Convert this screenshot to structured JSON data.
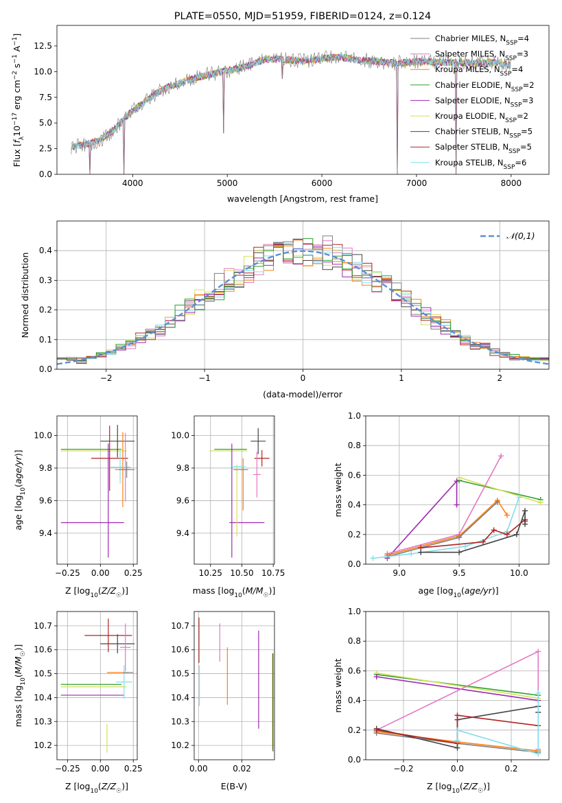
{
  "figure": {
    "title": "PLATE=0550, MJD=51959, FIBERID=0124, z=0.124"
  },
  "colors": {
    "Chabrier MILES": "#7f7f7f",
    "Salpeter MILES": "#e377c2",
    "Kroupa MILES": "#ff7f0e",
    "Chabrier ELODIE": "#2ca02c",
    "Salpeter ELODIE": "#9c27b0",
    "Kroupa ELODIE": "#d4e157",
    "Chabrier STELIB": "#444444",
    "Salpeter STELIB": "#b22222",
    "Kroupa STELIB": "#80deea",
    "normal": "#5b8fd6"
  },
  "chart_data": [
    {
      "id": "spectrum",
      "type": "line",
      "title": "PLATE=0550, MJD=51959, FIBERID=0124, z=0.124",
      "xlabel": "wavelength [Angstrom, rest frame]",
      "ylabel": "Flux [f_λ 10^-17 erg cm^-2 s^-1 A^-1]",
      "xlim": [
        3200,
        8400
      ],
      "ylim": [
        0,
        14.5
      ],
      "xticks": [
        4000,
        5000,
        6000,
        7000,
        8000
      ],
      "yticks": [
        0.0,
        2.5,
        5.0,
        7.5,
        10.0,
        12.5
      ],
      "grid": false,
      "legend_position": "top-right",
      "continuum": {
        "x": [
          3350,
          3500,
          3650,
          3800,
          3950,
          4100,
          4250,
          4400,
          4600,
          4800,
          5000,
          5200,
          5400,
          5600,
          5800,
          6000,
          6200,
          6400,
          6600,
          6800,
          7000,
          7200,
          7400,
          7600,
          7800,
          8000
        ],
        "y": [
          2.7,
          2.9,
          3.3,
          4.3,
          5.8,
          6.9,
          7.9,
          8.6,
          9.2,
          9.7,
          10.1,
          10.5,
          11.2,
          11.2,
          11.0,
          11.3,
          11.4,
          11.1,
          11.0,
          10.8,
          11.0,
          10.9,
          10.9,
          10.8,
          10.9,
          10.6
        ]
      },
      "drops": [
        {
          "x": 3550,
          "to": 0.0
        },
        {
          "x": 3910,
          "to": 0.0
        },
        {
          "x": 4960,
          "to": 4.0
        },
        {
          "x": 6800,
          "to": 0.0
        },
        {
          "x": 7420,
          "to": 0.0
        },
        {
          "x": 5580,
          "to": 9.3
        }
      ],
      "series": [
        {
          "name": "Chabrier MILES, N_SSP=4",
          "key": "Chabrier MILES"
        },
        {
          "name": "Salpeter MILES, N_SSP=3",
          "key": "Salpeter MILES"
        },
        {
          "name": "Kroupa MILES, N_SSP=4",
          "key": "Kroupa MILES"
        },
        {
          "name": "Chabrier ELODIE, N_SSP=2",
          "key": "Chabrier ELODIE"
        },
        {
          "name": "Salpeter ELODIE, N_SSP=3",
          "key": "Salpeter ELODIE"
        },
        {
          "name": "Kroupa ELODIE, N_SSP=2",
          "key": "Kroupa ELODIE"
        },
        {
          "name": "Chabrier STELIB, N_SSP=5",
          "key": "Chabrier STELIB"
        },
        {
          "name": "Salpeter STELIB, N_SSP=5",
          "key": "Salpeter STELIB"
        },
        {
          "name": "Kroupa STELIB, N_SSP=6",
          "key": "Kroupa STELIB"
        }
      ]
    },
    {
      "id": "residuals",
      "type": "line",
      "xlabel": "(data-model)/error",
      "ylabel": "Normed distribution",
      "xlim": [
        -2.5,
        2.5
      ],
      "ylim": [
        0,
        0.5
      ],
      "xticks": [
        -2,
        -1,
        0,
        1,
        2
      ],
      "yticks": [
        0.0,
        0.1,
        0.2,
        0.3,
        0.4
      ],
      "grid": true,
      "legend_position": "top-right",
      "legend": [
        "𝒩(0,1)"
      ],
      "bin_width": 0.1
    },
    {
      "id": "age-vs-Z",
      "type": "scatter",
      "xlabel": "Z [log10(Z/Z☉)]",
      "ylabel": "age [log10(age/yr)]",
      "xlim": [
        -0.33,
        0.28
      ],
      "ylim": [
        9.21,
        10.12
      ],
      "xticks": [
        -0.25,
        0.0,
        0.25
      ],
      "yticks": [
        9.4,
        9.6,
        9.8,
        10.0
      ],
      "grid": true,
      "points": [
        {
          "key": "Chabrier ELODIE",
          "x": -0.07,
          "y": 9.915,
          "xerr": 0.23,
          "yerr": 0.0
        },
        {
          "key": "Kroupa ELODIE",
          "x": -0.05,
          "y": 9.905,
          "xerr": 0.25,
          "yerr": 0.0
        },
        {
          "key": "Salpeter ELODIE",
          "x": -0.06,
          "y": 9.465,
          "xerr": 0.24,
          "yerr": 0.0
        },
        {
          "key": "Chabrier STELIB",
          "x": 0.13,
          "y": 9.965,
          "xerr": 0.13,
          "yerr": 0.1
        },
        {
          "key": "Salpeter STELIB",
          "x": 0.07,
          "y": 9.86,
          "xerr": 0.14,
          "yerr": 0.2
        },
        {
          "key": "Kroupa MILES",
          "x": 0.17,
          "y": 9.79,
          "xerr": 0.06,
          "yerr": 0.23
        },
        {
          "key": "Salpeter MILES",
          "x": 0.19,
          "y": 9.805,
          "xerr": 0.04,
          "yerr": 0.21
        },
        {
          "key": "Kroupa STELIB",
          "x": 0.15,
          "y": 9.805,
          "xerr": 0.08,
          "yerr": 0.1
        },
        {
          "key": "Chabrier MILES",
          "x": 0.2,
          "y": 9.79,
          "xerr": 0.06,
          "yerr": 0.05
        },
        {
          "key": "Salpeter ELODIE",
          "x": 0.06,
          "y": 9.6,
          "xerr": 0.0,
          "yerr": 0.35
        }
      ]
    },
    {
      "id": "age-vs-mass",
      "type": "scatter",
      "xlabel": "mass [log10(M/M☉)]",
      "ylabel": "",
      "xlim": [
        10.12,
        10.76
      ],
      "ylim": [
        9.21,
        10.12
      ],
      "xticks": [
        10.25,
        10.5,
        10.75
      ],
      "yticks": [
        9.4,
        9.6,
        9.8,
        10.0
      ],
      "grid": true,
      "points": [
        {
          "key": "Chabrier ELODIE",
          "x": 10.41,
          "y": 9.915,
          "xerr": 0.13,
          "yerr": 0.0
        },
        {
          "key": "Kroupa ELODIE",
          "x": 10.39,
          "y": 9.905,
          "xerr": 0.15,
          "yerr": 0.0
        },
        {
          "key": "Salpeter ELODIE",
          "x": 10.54,
          "y": 9.465,
          "xerr": 0.14,
          "yerr": 0.0
        },
        {
          "key": "Salpeter ELODIE",
          "x": 10.42,
          "y": 9.6,
          "xerr": 0.0,
          "yerr": 0.35
        },
        {
          "key": "Chabrier STELIB",
          "x": 10.63,
          "y": 9.965,
          "xerr": 0.06,
          "yerr": 0.08
        },
        {
          "key": "Salpeter STELIB",
          "x": 10.66,
          "y": 9.86,
          "xerr": 0.06,
          "yerr": 0.05
        },
        {
          "key": "Kroupa MILES",
          "x": 10.51,
          "y": 9.7,
          "xerr": 0.0,
          "yerr": 0.16
        },
        {
          "key": "Kroupa ELODIE",
          "x": 10.46,
          "y": 9.6,
          "xerr": 0.0,
          "yerr": 0.22
        },
        {
          "key": "Chabrier MILES",
          "x": 10.49,
          "y": 9.79,
          "xerr": 0.06,
          "yerr": 0.0
        },
        {
          "key": "Kroupa STELIB",
          "x": 10.47,
          "y": 9.81,
          "xerr": 0.06,
          "yerr": 0.0
        },
        {
          "key": "Salpeter MILES",
          "x": 10.62,
          "y": 9.76,
          "xerr": 0.03,
          "yerr": 0.14
        }
      ]
    },
    {
      "id": "weight-vs-age",
      "type": "line",
      "xlabel": "age [log10(age/yr)]",
      "ylabel": "mass weight",
      "xlim": [
        8.72,
        10.25
      ],
      "ylim": [
        0,
        1.0
      ],
      "xticks": [
        9.0,
        9.5,
        10.0
      ],
      "yticks": [
        0.0,
        0.2,
        0.4,
        0.6,
        0.8,
        1.0
      ],
      "grid": true,
      "series": [
        {
          "key": "Chabrier ELODIE",
          "x": [
            9.5,
            10.18
          ],
          "y": [
            0.565,
            0.435
          ]
        },
        {
          "key": "Kroupa ELODIE",
          "x": [
            9.5,
            10.18
          ],
          "y": [
            0.585,
            0.415
          ]
        },
        {
          "key": "Salpeter ELODIE",
          "x": [
            8.9,
            9.48,
            9.48
          ],
          "y": [
            0.04,
            0.56,
            0.4
          ]
        },
        {
          "key": "Salpeter MILES",
          "x": [
            8.9,
            9.5,
            9.85
          ],
          "y": [
            0.07,
            0.2,
            0.73
          ]
        },
        {
          "key": "Kroupa MILES",
          "x": [
            8.9,
            9.5,
            9.82,
            9.9
          ],
          "y": [
            0.06,
            0.19,
            0.43,
            0.33
          ]
        },
        {
          "key": "Chabrier MILES",
          "x": [
            8.9,
            9.5,
            9.82
          ],
          "y": [
            0.05,
            0.18,
            0.42
          ]
        },
        {
          "key": "Kroupa STELIB",
          "x": [
            8.78,
            9.1,
            9.55,
            9.9,
            10.0
          ],
          "y": [
            0.04,
            0.07,
            0.12,
            0.22,
            0.45
          ]
        },
        {
          "key": "Salpeter STELIB",
          "x": [
            9.18,
            9.7,
            9.79,
            9.9,
            10.05,
            10.05
          ],
          "y": [
            0.11,
            0.15,
            0.23,
            0.2,
            0.3,
            0.29
          ]
        },
        {
          "key": "Chabrier STELIB",
          "x": [
            9.18,
            9.5,
            9.98,
            10.05,
            10.05
          ],
          "y": [
            0.08,
            0.08,
            0.2,
            0.36,
            0.27
          ]
        }
      ]
    },
    {
      "id": "mass-vs-Z",
      "type": "scatter",
      "xlabel": "Z [log10(Z/Z☉)]",
      "ylabel": "mass [log10(M/M☉)]",
      "xlim": [
        -0.33,
        0.28
      ],
      "ylim": [
        10.14,
        10.76
      ],
      "xticks": [
        -0.25,
        0.0,
        0.25
      ],
      "yticks": [
        10.2,
        10.3,
        10.4,
        10.5,
        10.6,
        10.7
      ],
      "grid": true,
      "points": [
        {
          "key": "Chabrier ELODIE",
          "x": -0.07,
          "y": 10.455,
          "xerr": 0.23,
          "yerr": 0.0
        },
        {
          "key": "Kroupa ELODIE",
          "x": -0.05,
          "y": 10.445,
          "xerr": 0.25,
          "yerr": 0.0
        },
        {
          "key": "Salpeter ELODIE",
          "x": -0.06,
          "y": 10.41,
          "xerr": 0.24,
          "yerr": 0.0
        },
        {
          "key": "Salpeter STELIB",
          "x": 0.06,
          "y": 10.66,
          "xerr": 0.18,
          "yerr": 0.07
        },
        {
          "key": "Chabrier STELIB",
          "x": 0.13,
          "y": 10.625,
          "xerr": 0.13,
          "yerr": 0.04
        },
        {
          "key": "Kroupa MILES",
          "x": 0.13,
          "y": 10.505,
          "xerr": 0.08,
          "yerr": 0.0
        },
        {
          "key": "Salpeter MILES",
          "x": 0.19,
          "y": 10.61,
          "xerr": 0.04,
          "yerr": 0.1
        },
        {
          "key": "Kroupa STELIB",
          "x": 0.18,
          "y": 10.465,
          "xerr": 0.06,
          "yerr": 0.07
        },
        {
          "key": "Chabrier MILES",
          "x": 0.21,
          "y": 10.505,
          "xerr": 0.04,
          "yerr": 0.0
        },
        {
          "key": "Kroupa ELODIE",
          "x": 0.05,
          "y": 10.23,
          "xerr": 0.0,
          "yerr": 0.06
        }
      ]
    },
    {
      "id": "mass-vs-EBV",
      "type": "scatter",
      "xlabel": "E(B-V)",
      "ylabel": "",
      "xlim": [
        -0.002,
        0.035
      ],
      "ylim": [
        10.14,
        10.76
      ],
      "xticks": [
        0.0,
        0.02
      ],
      "yticks": [
        10.2,
        10.3,
        10.4,
        10.5,
        10.6,
        10.7
      ],
      "grid": true,
      "points": [
        {
          "key": "Salpeter STELIB",
          "x": 0.0002,
          "y": 10.64,
          "xerr": 0.0,
          "yerr": 0.095
        },
        {
          "key": "Kroupa STELIB",
          "x": 0.0004,
          "y": 10.45,
          "xerr": 0.0,
          "yerr": 0.085
        },
        {
          "key": "Salpeter MILES",
          "x": 0.0098,
          "y": 10.63,
          "xerr": 0.0,
          "yerr": 0.08
        },
        {
          "key": "Kroupa MILES",
          "x": 0.0133,
          "y": 10.49,
          "xerr": 0.0,
          "yerr": 0.12
        },
        {
          "key": "Salpeter ELODIE",
          "x": 0.0277,
          "y": 10.475,
          "xerr": 0.0,
          "yerr": 0.205
        },
        {
          "key": "Kroupa ELODIE",
          "x": 0.034,
          "y": 10.385,
          "xerr": 0.0,
          "yerr": 0.2
        },
        {
          "key": "Chabrier STELIB",
          "x": 0.0343,
          "y": 10.38,
          "xerr": 0.0,
          "yerr": 0.205
        }
      ]
    },
    {
      "id": "weight-vs-Z",
      "type": "line",
      "xlabel": "Z [log10(Z/Z☉)]",
      "ylabel": "mass weight",
      "xlim": [
        -0.34,
        0.34
      ],
      "ylim": [
        0,
        1.0
      ],
      "xticks": [
        -0.2,
        0.0,
        0.2
      ],
      "yticks": [
        0.0,
        0.2,
        0.4,
        0.6,
        0.8,
        1.0
      ],
      "grid": true,
      "series": [
        {
          "key": "Chabrier ELODIE",
          "x": [
            -0.3,
            0.3
          ],
          "y": [
            0.575,
            0.435
          ]
        },
        {
          "key": "Kroupa ELODIE",
          "x": [
            -0.3,
            0.3
          ],
          "y": [
            0.585,
            0.415
          ]
        },
        {
          "key": "Salpeter ELODIE",
          "x": [
            -0.3,
            0.3
          ],
          "y": [
            0.56,
            0.4
          ]
        },
        {
          "key": "Salpeter MILES",
          "x": [
            -0.3,
            0.3,
            0.3
          ],
          "y": [
            0.2,
            0.73,
            0.07
          ]
        },
        {
          "key": "Kroupa MILES",
          "x": [
            -0.3,
            0.0,
            0.3
          ],
          "y": [
            0.19,
            0.12,
            0.06
          ]
        },
        {
          "key": "Chabrier MILES",
          "x": [
            -0.3,
            0.0,
            0.3
          ],
          "y": [
            0.18,
            0.11,
            0.05
          ]
        },
        {
          "key": "Chabrier STELIB",
          "x": [
            -0.3,
            0.0,
            0.0,
            0.3,
            0.3
          ],
          "y": [
            0.21,
            0.08,
            0.27,
            0.36,
            0.32
          ]
        },
        {
          "key": "Salpeter STELIB",
          "x": [
            -0.3,
            0.0,
            0.0,
            0.3
          ],
          "y": [
            0.2,
            0.11,
            0.3,
            0.23
          ]
        },
        {
          "key": "Kroupa STELIB",
          "x": [
            0.0,
            0.0,
            0.3,
            0.3
          ],
          "y": [
            0.13,
            0.2,
            0.04,
            0.45
          ]
        }
      ]
    }
  ]
}
